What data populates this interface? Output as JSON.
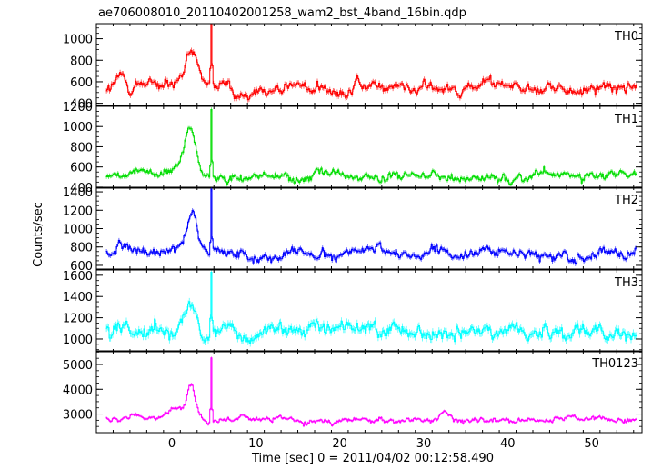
{
  "chart_data": {
    "type": "line",
    "title": "ae706008010_20110402001258_wam2_bst_4band_16bin.qdp",
    "xlabel": "Time [sec] 0 = 2011/04/02 00:12:58.490",
    "ylabel": "Counts/sec",
    "xlim": [
      -9,
      56
    ],
    "x_ticks": [
      0,
      10,
      20,
      30,
      40,
      50
    ],
    "x_tick_labels": [
      "0",
      "10",
      "20",
      "30",
      "40",
      "50"
    ],
    "panels": [
      {
        "name": "TH0",
        "color": "#ff0000",
        "ylim": [
          380,
          1140
        ],
        "y_ticks": [
          400,
          600,
          800,
          1000
        ],
        "y_tick_labels": [
          "400",
          "600",
          "800",
          "1000"
        ],
        "baseline": 540,
        "noise": 45,
        "peaks": [
          [
            1.5,
            80,
            1.0
          ],
          [
            2.2,
            250,
            0.5
          ],
          [
            3.1,
            90,
            0.4
          ],
          [
            4.7,
            600,
            0.07
          ],
          [
            -6,
            80,
            0.4
          ],
          [
            -3,
            60,
            0.8
          ]
        ]
      },
      {
        "name": "TH1",
        "color": "#00dd00",
        "ylim": [
          390,
          1200
        ],
        "y_ticks": [
          400,
          600,
          800,
          1000,
          1200
        ],
        "y_tick_labels": [
          "400",
          "600",
          "800",
          "1000",
          "1200"
        ],
        "baseline": 510,
        "noise": 35,
        "peaks": [
          [
            2.2,
            420,
            0.6
          ],
          [
            1.0,
            90,
            1.5
          ],
          [
            4.7,
            690,
            0.07
          ],
          [
            -4,
            70,
            0.9
          ]
        ]
      },
      {
        "name": "TH2",
        "color": "#0000ff",
        "ylim": [
          560,
          1450
        ],
        "y_ticks": [
          600,
          800,
          1000,
          1200,
          1400
        ],
        "y_tick_labels": [
          "600",
          "800",
          "1000",
          "1200",
          "1400"
        ],
        "baseline": 730,
        "noise": 45,
        "peaks": [
          [
            2.4,
            430,
            0.5
          ],
          [
            1.2,
            120,
            1.0
          ],
          [
            4.7,
            700,
            0.07
          ],
          [
            -6,
            80,
            0.6
          ]
        ]
      },
      {
        "name": "TH3",
        "color": "#00ffff",
        "ylim": [
          880,
          1650
        ],
        "y_ticks": [
          1000,
          1200,
          1400,
          1600
        ],
        "y_tick_labels": [
          "1000",
          "1200",
          "1400",
          "1600"
        ],
        "baseline": 1080,
        "noise": 60,
        "peaks": [
          [
            2.4,
            230,
            0.5
          ],
          [
            0.5,
            80,
            1.5
          ],
          [
            4.7,
            560,
            0.07
          ],
          [
            -5,
            80,
            0.8
          ]
        ]
      },
      {
        "name": "TH0123",
        "color": "#ff00ff",
        "ylim": [
          2250,
          5550
        ],
        "y_ticks": [
          3000,
          4000,
          5000
        ],
        "y_tick_labels": [
          "3000",
          "4000",
          "5000"
        ],
        "baseline": 2780,
        "noise": 90,
        "peaks": [
          [
            2.3,
            1350,
            0.5
          ],
          [
            0.5,
            350,
            1.2
          ],
          [
            4.7,
            2500,
            0.07
          ],
          [
            -4,
            200,
            0.8
          ],
          [
            32.5,
            250,
            0.4
          ]
        ]
      }
    ]
  }
}
